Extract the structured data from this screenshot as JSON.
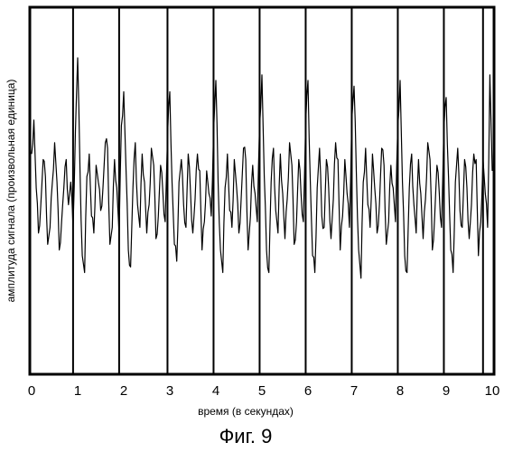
{
  "chart_data": {
    "type": "line",
    "title": "",
    "xlabel": "время (в секундах)",
    "ylabel": "амплитуда сигнала (произвольная единица)",
    "xlim": [
      0,
      10
    ],
    "x_ticks": [
      "0",
      "1",
      "2",
      "3",
      "4",
      "5",
      "6",
      "7",
      "8",
      "9",
      "10"
    ],
    "y_ticks": [],
    "grid": false,
    "vertical_markers_seconds": [
      0.9,
      1.9,
      2.95,
      3.95,
      4.95,
      5.95,
      6.95,
      7.95,
      8.95,
      9.8
    ],
    "series": [
      {
        "values_note_free": true,
        "x": [
          0,
          0.05,
          0.1,
          0.15,
          0.2,
          0.25,
          0.3,
          0.35,
          0.4,
          0.45,
          0.5,
          0.55,
          0.6,
          0.65,
          0.7,
          0.75,
          0.8,
          0.85,
          0.9,
          0.95,
          1.0,
          1.05,
          1.1,
          1.15,
          1.2,
          1.25,
          1.3,
          1.35,
          1.4,
          1.45,
          1.5,
          1.55,
          1.6,
          1.65,
          1.7,
          1.75,
          1.8,
          1.85,
          1.9,
          1.95,
          2.0,
          2.05,
          2.1,
          2.15,
          2.2,
          2.25,
          2.3,
          2.35,
          2.4,
          2.45,
          2.5,
          2.55,
          2.6,
          2.65,
          2.7,
          2.75,
          2.8,
          2.85,
          2.9,
          2.95,
          3.0,
          3.05,
          3.1,
          3.15,
          3.2,
          3.25,
          3.3,
          3.35,
          3.4,
          3.45,
          3.5,
          3.55,
          3.6,
          3.65,
          3.7,
          3.75,
          3.8,
          3.85,
          3.9,
          3.95,
          4.0,
          4.05,
          4.1,
          4.15,
          4.2,
          4.25,
          4.3,
          4.35,
          4.4,
          4.45,
          4.5,
          4.55,
          4.6,
          4.65,
          4.7,
          4.75,
          4.8,
          4.85,
          4.9,
          4.95,
          5.0,
          5.05,
          5.1,
          5.15,
          5.2,
          5.25,
          5.3,
          5.35,
          5.4,
          5.45,
          5.5,
          5.55,
          5.6,
          5.65,
          5.7,
          5.75,
          5.8,
          5.85,
          5.9,
          5.95,
          6.0,
          6.05,
          6.1,
          6.15,
          6.2,
          6.25,
          6.3,
          6.35,
          6.4,
          6.45,
          6.5,
          6.55,
          6.6,
          6.65,
          6.7,
          6.75,
          6.8,
          6.85,
          6.9,
          6.95,
          7.0,
          7.05,
          7.1,
          7.15,
          7.2,
          7.25,
          7.3,
          7.35,
          7.4,
          7.45,
          7.5,
          7.55,
          7.6,
          7.65,
          7.7,
          7.75,
          7.8,
          7.85,
          7.9,
          7.95,
          8.0,
          8.05,
          8.1,
          8.15,
          8.2,
          8.25,
          8.3,
          8.35,
          8.4,
          8.45,
          8.5,
          8.55,
          8.6,
          8.65,
          8.7,
          8.75,
          8.8,
          8.85,
          8.9,
          8.95,
          9.0,
          9.05,
          9.1,
          9.15,
          9.2,
          9.25,
          9.3,
          9.35,
          9.4,
          9.45,
          9.5,
          9.55,
          9.6,
          9.65,
          9.7,
          9.75,
          9.8,
          9.85,
          9.9,
          9.95,
          10.0
        ],
        "y": [
          0.35,
          0.65,
          0.05,
          -0.35,
          -0.1,
          0.3,
          0.15,
          -0.45,
          -0.3,
          0.1,
          0.45,
          0.1,
          -0.5,
          -0.25,
          0.05,
          0.3,
          -0.1,
          0.1,
          -0.3,
          0.55,
          1.2,
          0.2,
          -0.55,
          -0.7,
          0.15,
          0.35,
          -0.2,
          -0.35,
          0.25,
          0.1,
          -0.15,
          0.05,
          0.45,
          0.4,
          -0.45,
          -0.3,
          0.3,
          0.05,
          -0.35,
          0.6,
          0.9,
          0.2,
          -0.5,
          -0.65,
          0.05,
          0.45,
          -0.1,
          -0.3,
          0.35,
          0.1,
          -0.35,
          -0.1,
          0.4,
          0.25,
          -0.4,
          -0.2,
          0.25,
          0.0,
          -0.25,
          0.5,
          0.9,
          0.1,
          -0.45,
          -0.6,
          0.1,
          0.3,
          -0.1,
          -0.3,
          0.35,
          0.0,
          -0.35,
          -0.05,
          0.35,
          0.2,
          -0.5,
          -0.25,
          0.2,
          0.0,
          -0.2,
          0.55,
          1.0,
          0.1,
          -0.5,
          -0.7,
          0.05,
          0.35,
          -0.15,
          -0.3,
          0.3,
          0.05,
          -0.35,
          -0.05,
          0.4,
          0.3,
          -0.5,
          -0.2,
          0.25,
          0.0,
          -0.25,
          0.6,
          1.05,
          0.15,
          -0.5,
          -0.7,
          0.1,
          0.4,
          -0.15,
          -0.35,
          0.35,
          0.0,
          -0.4,
          -0.05,
          0.45,
          0.25,
          -0.45,
          -0.25,
          0.3,
          0.0,
          -0.25,
          0.6,
          1.0,
          0.1,
          -0.55,
          -0.7,
          0.05,
          0.4,
          -0.2,
          -0.3,
          0.3,
          0.05,
          -0.4,
          -0.05,
          0.45,
          0.3,
          -0.5,
          -0.2,
          0.3,
          0.0,
          -0.3,
          0.65,
          0.95,
          0.2,
          -0.5,
          -0.75,
          0.1,
          0.4,
          -0.1,
          -0.3,
          0.35,
          0.05,
          -0.35,
          -0.1,
          0.4,
          0.25,
          -0.45,
          -0.25,
          0.25,
          0.05,
          -0.25,
          0.6,
          1.0,
          0.1,
          -0.55,
          -0.7,
          0.05,
          0.35,
          -0.1,
          -0.35,
          0.3,
          0.0,
          -0.4,
          -0.05,
          0.45,
          0.3,
          -0.5,
          -0.2,
          0.25,
          0.0,
          -0.3,
          0.55,
          0.85,
          0.15,
          -0.5,
          -0.7,
          0.1,
          0.4,
          -0.15,
          -0.3,
          0.3,
          0.05,
          -0.4,
          -0.1,
          0.35,
          0.3,
          -0.55,
          -0.25,
          0.3,
          0.0,
          -0.3,
          1.05,
          0.2
        ]
      }
    ]
  },
  "caption": "Фиг. 9",
  "colors": {
    "line": "#000000",
    "background": "#ffffff"
  }
}
